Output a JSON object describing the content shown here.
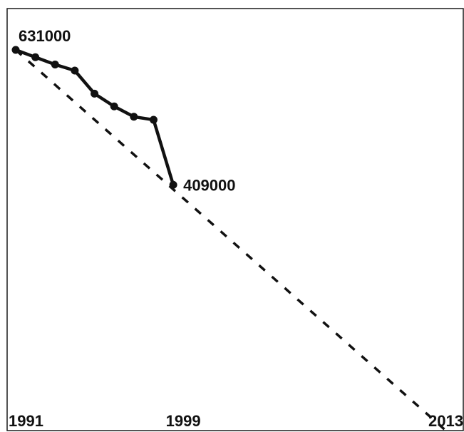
{
  "chart_data": {
    "type": "line",
    "title": "",
    "xlabel": "",
    "ylabel": "",
    "x_ticks": [
      "1991",
      "1999",
      "2013"
    ],
    "xlim": [
      1991,
      2013
    ],
    "series": [
      {
        "style": "solid-with-markers",
        "x": [
          1991,
          1992,
          1993,
          1994,
          1995,
          1996,
          1997,
          1998,
          1999
        ],
        "values": [
          631000,
          619000,
          607000,
          597000,
          559000,
          538000,
          521000,
          516000,
          409000
        ],
        "labels": {
          "1991": "631000",
          "1999": "409000"
        }
      },
      {
        "style": "dashed-trend",
        "x": [
          1991,
          2013
        ],
        "values": [
          631000,
          0
        ]
      }
    ],
    "grid": false,
    "legend": "none"
  }
}
